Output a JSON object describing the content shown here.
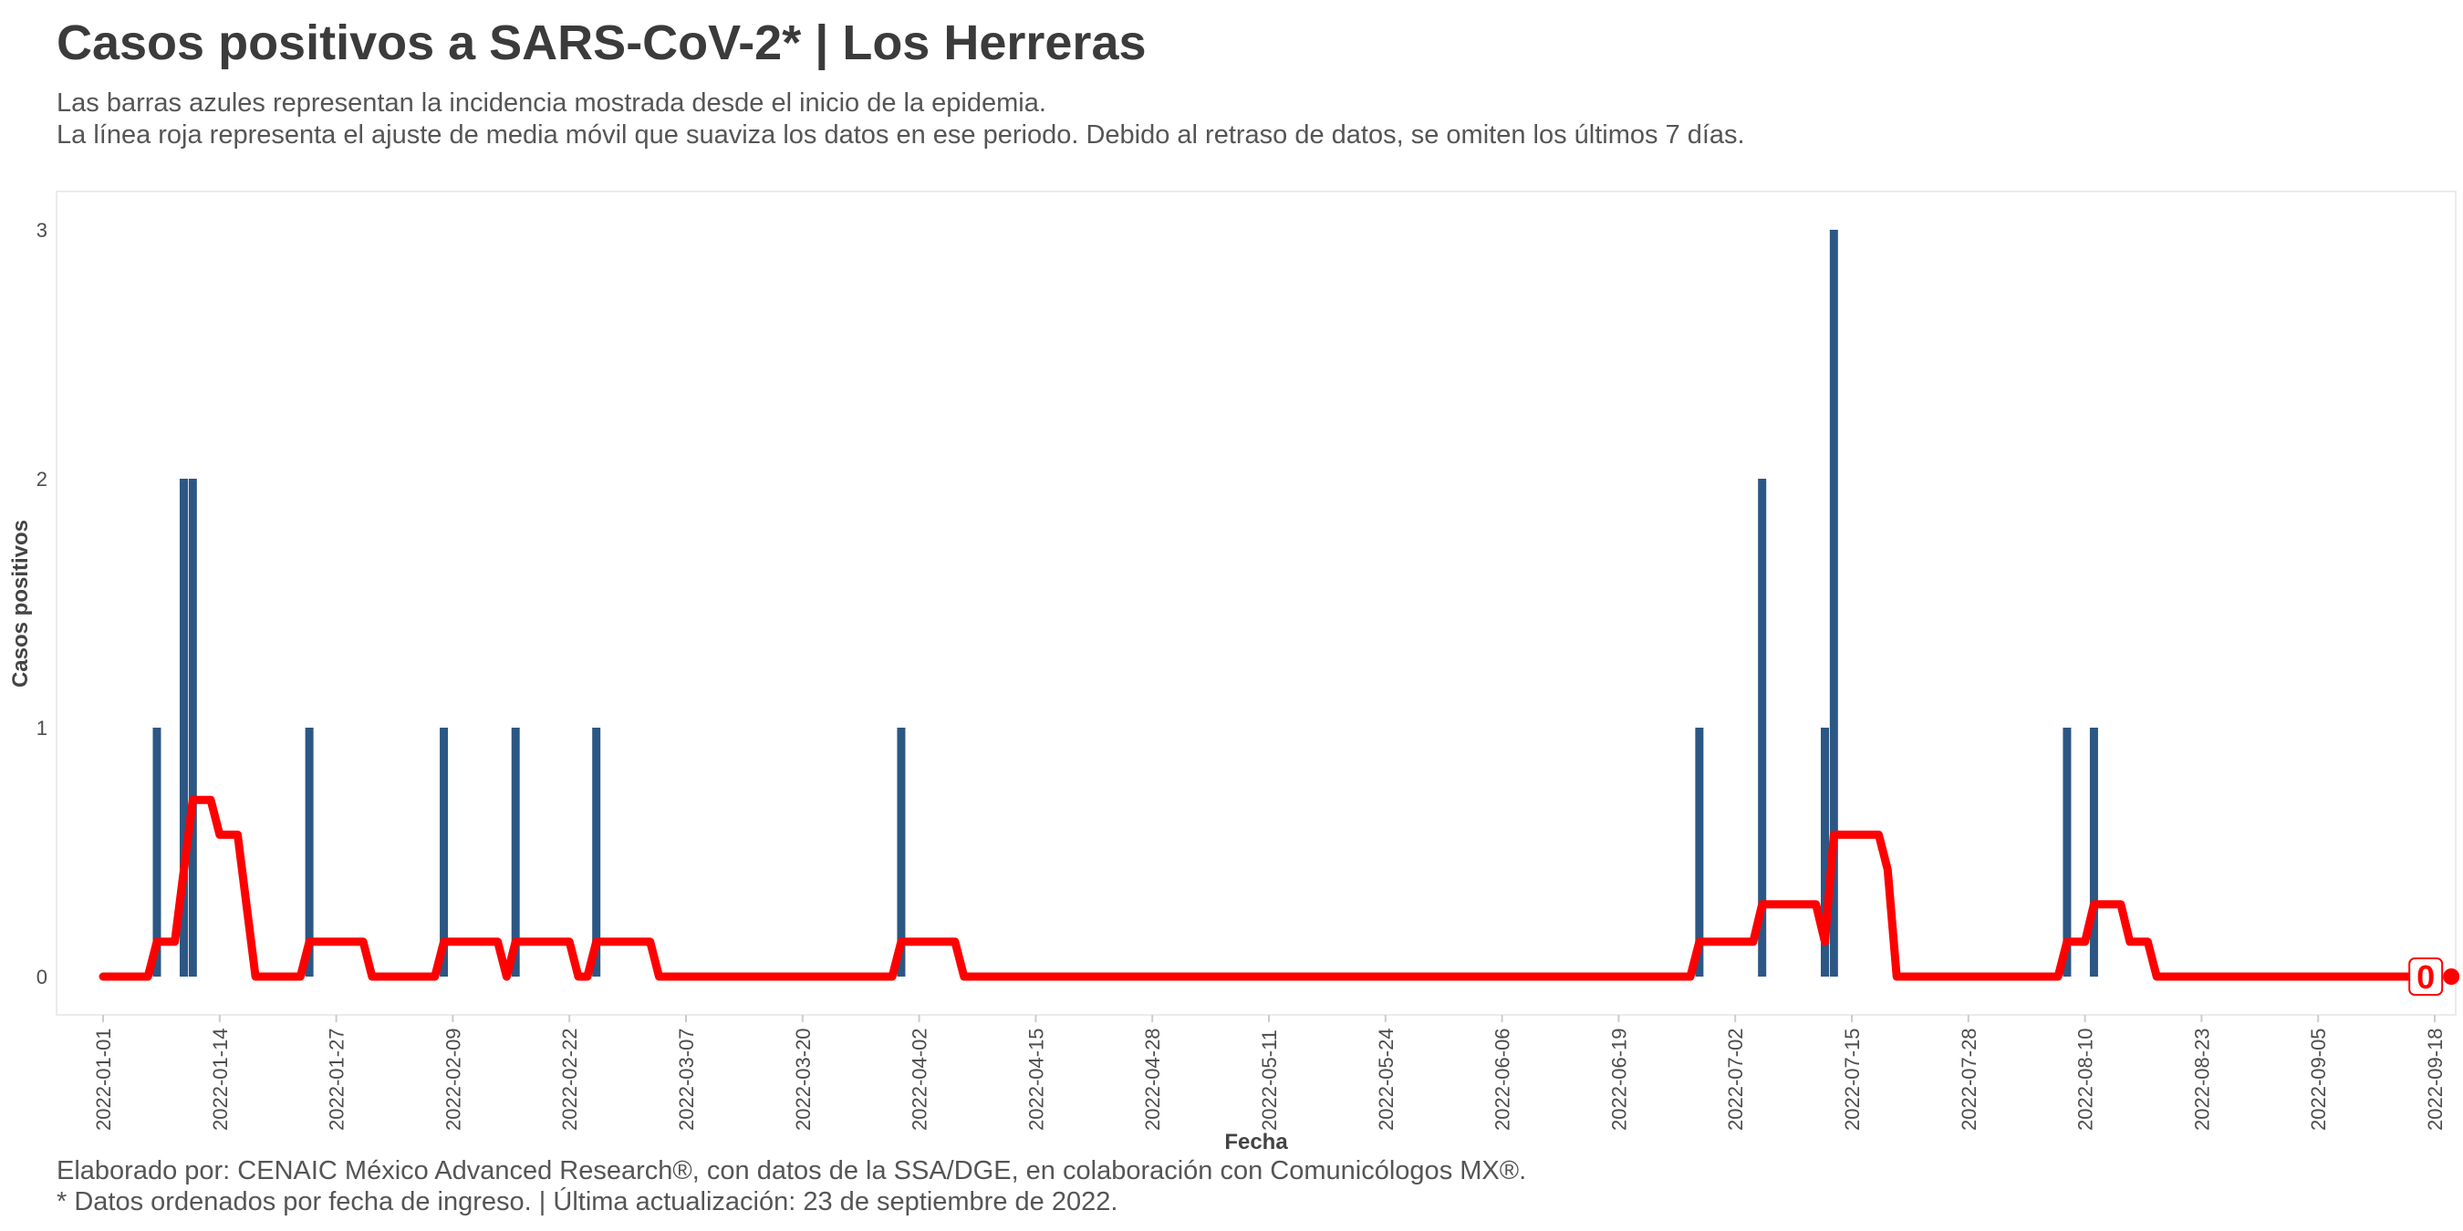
{
  "title": "Casos positivos a SARS-CoV-2* | Los Herreras",
  "subtitle_1": "Las barras azules representan la incidencia mostrada desde el inicio de la epidemia.",
  "subtitle_2": "La línea roja representa el ajuste de media móvil que suaviza los datos en ese periodo. Debido al retraso de datos, se omiten los últimos 7 días.",
  "caption_1": "Elaborado por: CENAIC México Advanced Research®, con datos de la SSA/DGE, en colaboración con Comunicólogos MX®.",
  "caption_2": "* Datos ordenados por fecha de ingreso. | Última actualización: 23 de septiembre de 2022.",
  "colors": {
    "bar": "#2c5784",
    "line": "#ff0000"
  },
  "chart_data": {
    "type": "bar",
    "xlabel": "Fecha",
    "ylabel": "Casos positivos",
    "x_range": [
      "2022-01-01",
      "2022-09-18"
    ],
    "ylim": [
      0,
      3
    ],
    "y_ticks": [
      "0",
      "1",
      "2",
      "3"
    ],
    "x_ticks": [
      "2022-01-01",
      "2022-01-14",
      "2022-01-27",
      "2022-02-09",
      "2022-02-22",
      "2022-03-07",
      "2022-03-20",
      "2022-04-02",
      "2022-04-15",
      "2022-04-28",
      "2022-05-11",
      "2022-05-24",
      "2022-06-06",
      "2022-06-19",
      "2022-07-02",
      "2022-07-15",
      "2022-07-28",
      "2022-08-10",
      "2022-08-23",
      "2022-09-05",
      "2022-09-18"
    ],
    "bars": [
      {
        "date": "2022-01-07",
        "value": 1
      },
      {
        "date": "2022-01-10",
        "value": 2
      },
      {
        "date": "2022-01-11",
        "value": 2
      },
      {
        "date": "2022-01-24",
        "value": 1
      },
      {
        "date": "2022-02-08",
        "value": 1
      },
      {
        "date": "2022-02-16",
        "value": 1
      },
      {
        "date": "2022-02-25",
        "value": 1
      },
      {
        "date": "2022-03-31",
        "value": 1
      },
      {
        "date": "2022-06-28",
        "value": 1
      },
      {
        "date": "2022-07-05",
        "value": 2
      },
      {
        "date": "2022-07-12",
        "value": 1
      },
      {
        "date": "2022-07-13",
        "value": 3
      },
      {
        "date": "2022-08-08",
        "value": 1
      },
      {
        "date": "2022-08-11",
        "value": 1
      }
    ],
    "moving_average": [
      {
        "date": "2022-01-01",
        "value": 0
      },
      {
        "date": "2022-01-06",
        "value": 0
      },
      {
        "date": "2022-01-07",
        "value": 0.14
      },
      {
        "date": "2022-01-09",
        "value": 0.14
      },
      {
        "date": "2022-01-11",
        "value": 0.71
      },
      {
        "date": "2022-01-13",
        "value": 0.71
      },
      {
        "date": "2022-01-14",
        "value": 0.57
      },
      {
        "date": "2022-01-16",
        "value": 0.57
      },
      {
        "date": "2022-01-18",
        "value": 0
      },
      {
        "date": "2022-01-23",
        "value": 0
      },
      {
        "date": "2022-01-24",
        "value": 0.14
      },
      {
        "date": "2022-01-30",
        "value": 0.14
      },
      {
        "date": "2022-01-31",
        "value": 0
      },
      {
        "date": "2022-02-07",
        "value": 0
      },
      {
        "date": "2022-02-08",
        "value": 0.14
      },
      {
        "date": "2022-02-14",
        "value": 0.14
      },
      {
        "date": "2022-02-15",
        "value": 0
      },
      {
        "date": "2022-02-16",
        "value": 0.14
      },
      {
        "date": "2022-02-22",
        "value": 0.14
      },
      {
        "date": "2022-02-23",
        "value": 0
      },
      {
        "date": "2022-02-24",
        "value": 0
      },
      {
        "date": "2022-02-25",
        "value": 0.14
      },
      {
        "date": "2022-03-03",
        "value": 0.14
      },
      {
        "date": "2022-03-04",
        "value": 0
      },
      {
        "date": "2022-03-30",
        "value": 0
      },
      {
        "date": "2022-03-31",
        "value": 0.14
      },
      {
        "date": "2022-04-06",
        "value": 0.14
      },
      {
        "date": "2022-04-07",
        "value": 0
      },
      {
        "date": "2022-06-27",
        "value": 0
      },
      {
        "date": "2022-06-28",
        "value": 0.14
      },
      {
        "date": "2022-07-04",
        "value": 0.14
      },
      {
        "date": "2022-07-05",
        "value": 0.29
      },
      {
        "date": "2022-07-11",
        "value": 0.29
      },
      {
        "date": "2022-07-12",
        "value": 0.14
      },
      {
        "date": "2022-07-13",
        "value": 0.57
      },
      {
        "date": "2022-07-18",
        "value": 0.57
      },
      {
        "date": "2022-07-19",
        "value": 0.43
      },
      {
        "date": "2022-07-20",
        "value": 0
      },
      {
        "date": "2022-08-07",
        "value": 0
      },
      {
        "date": "2022-08-08",
        "value": 0.14
      },
      {
        "date": "2022-08-10",
        "value": 0.14
      },
      {
        "date": "2022-08-11",
        "value": 0.29
      },
      {
        "date": "2022-08-14",
        "value": 0.29
      },
      {
        "date": "2022-08-15",
        "value": 0.14
      },
      {
        "date": "2022-08-17",
        "value": 0.14
      },
      {
        "date": "2022-08-18",
        "value": 0
      },
      {
        "date": "2022-09-16",
        "value": 0
      }
    ],
    "last_point": {
      "date": "2022-09-17",
      "value": 0,
      "label": "0"
    }
  }
}
